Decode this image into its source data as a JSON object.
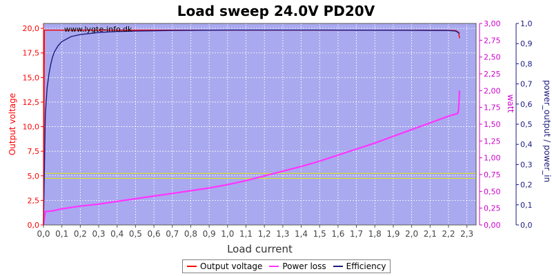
{
  "chart_data": {
    "type": "line",
    "title": "Load sweep 24.0V PD20V",
    "xlabel": "Load current",
    "watermark": "www.lygte-info.dk",
    "grid": true,
    "legend_position": "bottom",
    "x_axis": {
      "range": [
        0.0,
        2.35
      ],
      "ticks": [
        "0,0",
        "0,1",
        "0,2",
        "0,3",
        "0,4",
        "0,5",
        "0,6",
        "0,7",
        "0,8",
        "0,9",
        "1,0",
        "1,1",
        "1,2",
        "1,3",
        "1,4",
        "1,5",
        "1,6",
        "1,7",
        "1,8",
        "1,9",
        "2,0",
        "2,1",
        "2,2",
        "2,3"
      ]
    },
    "y_left": {
      "label": "Output voltage",
      "range": [
        0.0,
        20.5
      ],
      "ticks": [
        "0,0",
        "2,5",
        "5,0",
        "7,5",
        "10,0",
        "12,5",
        "15,0",
        "17,5",
        "20,0"
      ]
    },
    "y_right1": {
      "label": "watt",
      "range": [
        0.0,
        3.0
      ],
      "ticks": [
        "0,00",
        "0,25",
        "0,50",
        "0,75",
        "1,00",
        "1,25",
        "1,50",
        "1,75",
        "2,00",
        "2,25",
        "2,50",
        "2,75",
        "3,00"
      ]
    },
    "y_right2": {
      "label": "power_output / power_in",
      "range": [
        0.0,
        1.0
      ],
      "ticks": [
        "0,0",
        "0,1",
        "0,2",
        "0,3",
        "0,4",
        "0,5",
        "0,6",
        "0,7",
        "0,8",
        "0,9",
        "1,0"
      ]
    },
    "reference_lines_voltage": [
      5.25,
      4.75
    ],
    "series": [
      {
        "name": "Output voltage",
        "axis": "left",
        "color": "#ff0000",
        "x": [
          0.0,
          0.005,
          0.01,
          0.05,
          0.5,
          1.0,
          1.5,
          2.0,
          2.2,
          2.24,
          2.255,
          2.26
        ],
        "y": [
          0.0,
          19.8,
          19.82,
          19.82,
          19.82,
          19.82,
          19.82,
          19.81,
          19.8,
          19.78,
          19.6,
          19.0
        ]
      },
      {
        "name": "Power loss",
        "axis": "right1",
        "color": "#ff33ff",
        "x": [
          0.0,
          0.01,
          0.05,
          0.1,
          0.15,
          0.2,
          0.3,
          0.4,
          0.5,
          0.6,
          0.7,
          0.8,
          0.9,
          1.0,
          1.1,
          1.2,
          1.3,
          1.4,
          1.5,
          1.6,
          1.7,
          1.8,
          1.9,
          2.0,
          2.1,
          2.2,
          2.25,
          2.255,
          2.26
        ],
        "y": [
          0.0,
          0.2,
          0.21,
          0.24,
          0.26,
          0.28,
          0.31,
          0.35,
          0.39,
          0.43,
          0.47,
          0.51,
          0.55,
          0.6,
          0.66,
          0.73,
          0.8,
          0.87,
          0.95,
          1.04,
          1.13,
          1.22,
          1.32,
          1.42,
          1.52,
          1.62,
          1.66,
          1.72,
          2.0
        ]
      },
      {
        "name": "Efficiency",
        "axis": "right2",
        "color": "#1a1a80",
        "x": [
          0.0,
          0.01,
          0.02,
          0.03,
          0.04,
          0.05,
          0.06,
          0.08,
          0.1,
          0.15,
          0.2,
          0.3,
          0.4,
          0.5,
          0.7,
          1.0,
          1.5,
          2.0,
          2.2,
          2.24,
          2.26
        ],
        "y": [
          0.0,
          0.55,
          0.68,
          0.75,
          0.8,
          0.835,
          0.86,
          0.89,
          0.91,
          0.935,
          0.945,
          0.955,
          0.96,
          0.962,
          0.965,
          0.967,
          0.967,
          0.966,
          0.965,
          0.962,
          0.95
        ]
      }
    ]
  }
}
